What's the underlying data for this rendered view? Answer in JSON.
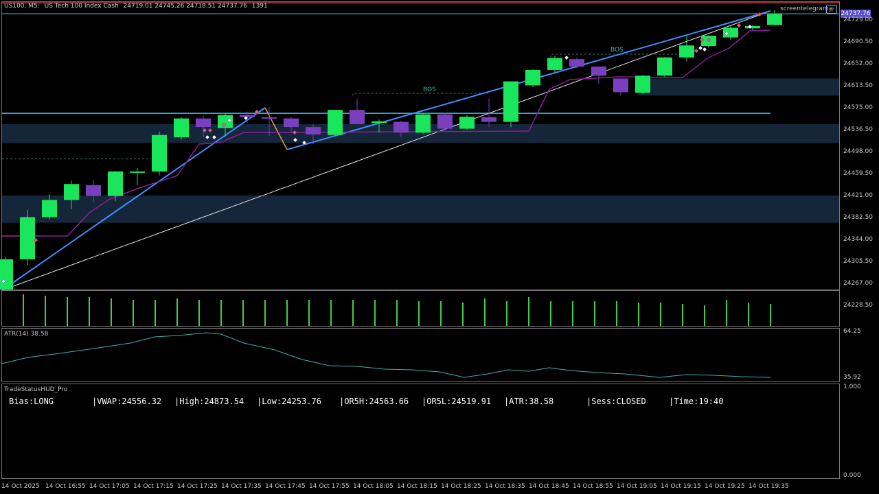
{
  "header": {
    "symbol": "US100, M5:",
    "description": "US Tech 100 Index Cash",
    "ohlc": "24719.01 24745.26 24718.51 24737.76",
    "count": "1391"
  },
  "brand": {
    "text": "screentelegram",
    "icon": "graduation-cap-icon"
  },
  "current_price": "24737.76",
  "price_axis": [
    "24729.00",
    "24690.50",
    "24652.00",
    "24613.50",
    "24575.00",
    "24536.50",
    "24498.00",
    "24459.50",
    "24421.00",
    "24382.50",
    "24344.00",
    "24305.50",
    "24267.00",
    "24228.50"
  ],
  "atr_panel": {
    "label": "ATR(14) 38.58",
    "max_label": "64.25",
    "min_label": "35.92"
  },
  "hud_panel": {
    "label": "TradeStatusHUD_Pro",
    "max_label": "1.000",
    "min_label": "0.000"
  },
  "hud": {
    "bias": "Bias:LONG",
    "vwap": "|VWAP:24556.32",
    "high": "|High:24873.54",
    "low": "|Low:24253.76",
    "or5h": "|OR5H:24563.66",
    "or5l": "|OR5L:24519.91",
    "atr": "|ATR:38.58",
    "session": "|Sess:CLOSED",
    "time": "|Time:19:40"
  },
  "time_axis": [
    "14 Oct 2025",
    "14 Oct 16:55",
    "14 Oct 17:05",
    "14 Oct 17:15",
    "14 Oct 17:25",
    "14 Oct 17:35",
    "14 Oct 17:45",
    "14 Oct 17:55",
    "14 Oct 18:05",
    "14 Oct 18:15",
    "14 Oct 18:25",
    "14 Oct 18:35",
    "14 Oct 18:45",
    "14 Oct 18:55",
    "14 Oct 19:05",
    "14 Oct 19:15",
    "14 Oct 19:25",
    "14 Oct 19:35"
  ],
  "annotations": {
    "bos_1": "BOS",
    "bos_2": "BOS"
  },
  "colors": {
    "bull": "#19e65a",
    "bear": "#7a3fbf",
    "vwap": "#3fb8ff",
    "zone": "#16263a",
    "trend": "#3f8fff",
    "stop": "#8a1f9a",
    "atr": "#3fb0b0",
    "volume": "#3fd03f"
  },
  "chart_data": {
    "type": "candlestick",
    "time_step": "5 min",
    "candles": [
      {
        "o": 24255,
        "h": 24313,
        "l": 24255,
        "c": 24308
      },
      {
        "o": 24308,
        "h": 24395,
        "l": 24298,
        "c": 24382
      },
      {
        "o": 24382,
        "h": 24422,
        "l": 24378,
        "c": 24412
      },
      {
        "o": 24412,
        "h": 24446,
        "l": 24396,
        "c": 24440
      },
      {
        "o": 24438,
        "h": 24447,
        "l": 24408,
        "c": 24419
      },
      {
        "o": 24419,
        "h": 24463,
        "l": 24410,
        "c": 24462
      },
      {
        "o": 24460,
        "h": 24468,
        "l": 24438,
        "c": 24462
      },
      {
        "o": 24462,
        "h": 24532,
        "l": 24455,
        "c": 24526
      },
      {
        "o": 24522,
        "h": 24557,
        "l": 24518,
        "c": 24555
      },
      {
        "o": 24555,
        "h": 24560,
        "l": 24522,
        "c": 24540
      },
      {
        "o": 24538,
        "h": 24564,
        "l": 24523,
        "c": 24561
      },
      {
        "o": 24561,
        "h": 24567,
        "l": 24548,
        "c": 24557
      },
      {
        "o": 24557,
        "h": 24575,
        "l": 24524,
        "c": 24556
      },
      {
        "o": 24555,
        "h": 24557,
        "l": 24530,
        "c": 24540
      },
      {
        "o": 24540,
        "h": 24545,
        "l": 24510,
        "c": 24527
      },
      {
        "o": 24526,
        "h": 24570,
        "l": 24525,
        "c": 24570
      },
      {
        "o": 24570,
        "h": 24590,
        "l": 24545,
        "c": 24545
      },
      {
        "o": 24547,
        "h": 24553,
        "l": 24530,
        "c": 24550
      },
      {
        "o": 24549,
        "h": 24551,
        "l": 24522,
        "c": 24530
      },
      {
        "o": 24530,
        "h": 24565,
        "l": 24528,
        "c": 24562
      },
      {
        "o": 24562,
        "h": 24565,
        "l": 24534,
        "c": 24537
      },
      {
        "o": 24537,
        "h": 24561,
        "l": 24535,
        "c": 24558
      },
      {
        "o": 24557,
        "h": 24590,
        "l": 24540,
        "c": 24549
      },
      {
        "o": 24549,
        "h": 24620,
        "l": 24540,
        "c": 24620
      },
      {
        "o": 24613,
        "h": 24642,
        "l": 24610,
        "c": 24640
      },
      {
        "o": 24640,
        "h": 24664,
        "l": 24635,
        "c": 24661
      },
      {
        "o": 24659,
        "h": 24662,
        "l": 24643,
        "c": 24646
      },
      {
        "o": 24646,
        "h": 24646,
        "l": 24615,
        "c": 24630
      },
      {
        "o": 24625,
        "h": 24625,
        "l": 24595,
        "c": 24601
      },
      {
        "o": 24600,
        "h": 24631,
        "l": 24598,
        "c": 24630
      },
      {
        "o": 24630,
        "h": 24663,
        "l": 24628,
        "c": 24662
      },
      {
        "o": 24662,
        "h": 24700,
        "l": 24655,
        "c": 24683
      },
      {
        "o": 24682,
        "h": 24701,
        "l": 24679,
        "c": 24700
      },
      {
        "o": 24697,
        "h": 24718,
        "l": 24693,
        "c": 24714
      },
      {
        "o": 24713,
        "h": 24719,
        "l": 24710,
        "c": 24717
      },
      {
        "o": 24719,
        "h": 24745,
        "l": 24718,
        "c": 24738
      }
    ],
    "vwap": 24556.32,
    "session_high": 24873.54,
    "session_low": 24253.76,
    "atr": 38.58,
    "atr_range": [
      35.92,
      64.25
    ],
    "price_range": [
      24228.5,
      24729.0
    ],
    "bos_labels": [
      "BOS",
      "BOS"
    ],
    "grid": false
  }
}
